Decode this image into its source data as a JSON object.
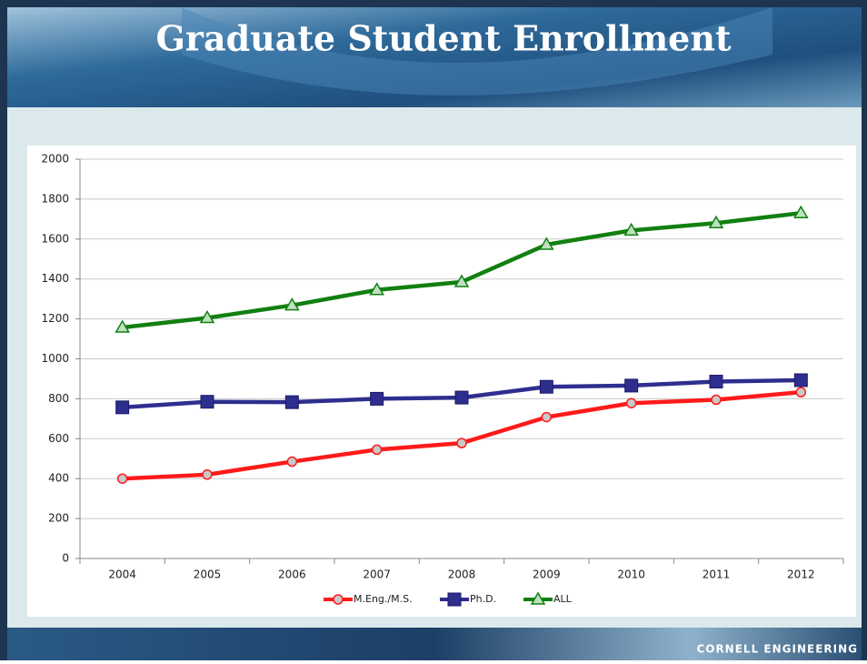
{
  "chart_data": {
    "type": "line",
    "title": "Graduate Student Enrollment",
    "categories": [
      "2004",
      "2005",
      "2006",
      "2007",
      "2008",
      "2009",
      "2010",
      "2011",
      "2012"
    ],
    "series": [
      {
        "name": "M.Eng./M.S.",
        "color": "#ff1a1a",
        "marker": "circle",
        "values": [
          400,
          420,
          485,
          545,
          578,
          708,
          778,
          795,
          833
        ]
      },
      {
        "name": "Ph.D.",
        "color": "#2e2e8f",
        "marker": "square",
        "values": [
          757,
          785,
          783,
          800,
          806,
          860,
          866,
          886,
          893
        ]
      },
      {
        "name": "ALL",
        "color": "#118011",
        "marker": "triangle",
        "values": [
          1157,
          1205,
          1268,
          1345,
          1385,
          1572,
          1643,
          1680,
          1730
        ]
      }
    ],
    "ylim": [
      0,
      2000
    ],
    "yticks": [
      0,
      200,
      400,
      600,
      800,
      1000,
      1200,
      1400,
      1600,
      1800,
      2000
    ],
    "grid": true,
    "legend": "bottom"
  },
  "footer": "CORNELL ENGINEERING"
}
